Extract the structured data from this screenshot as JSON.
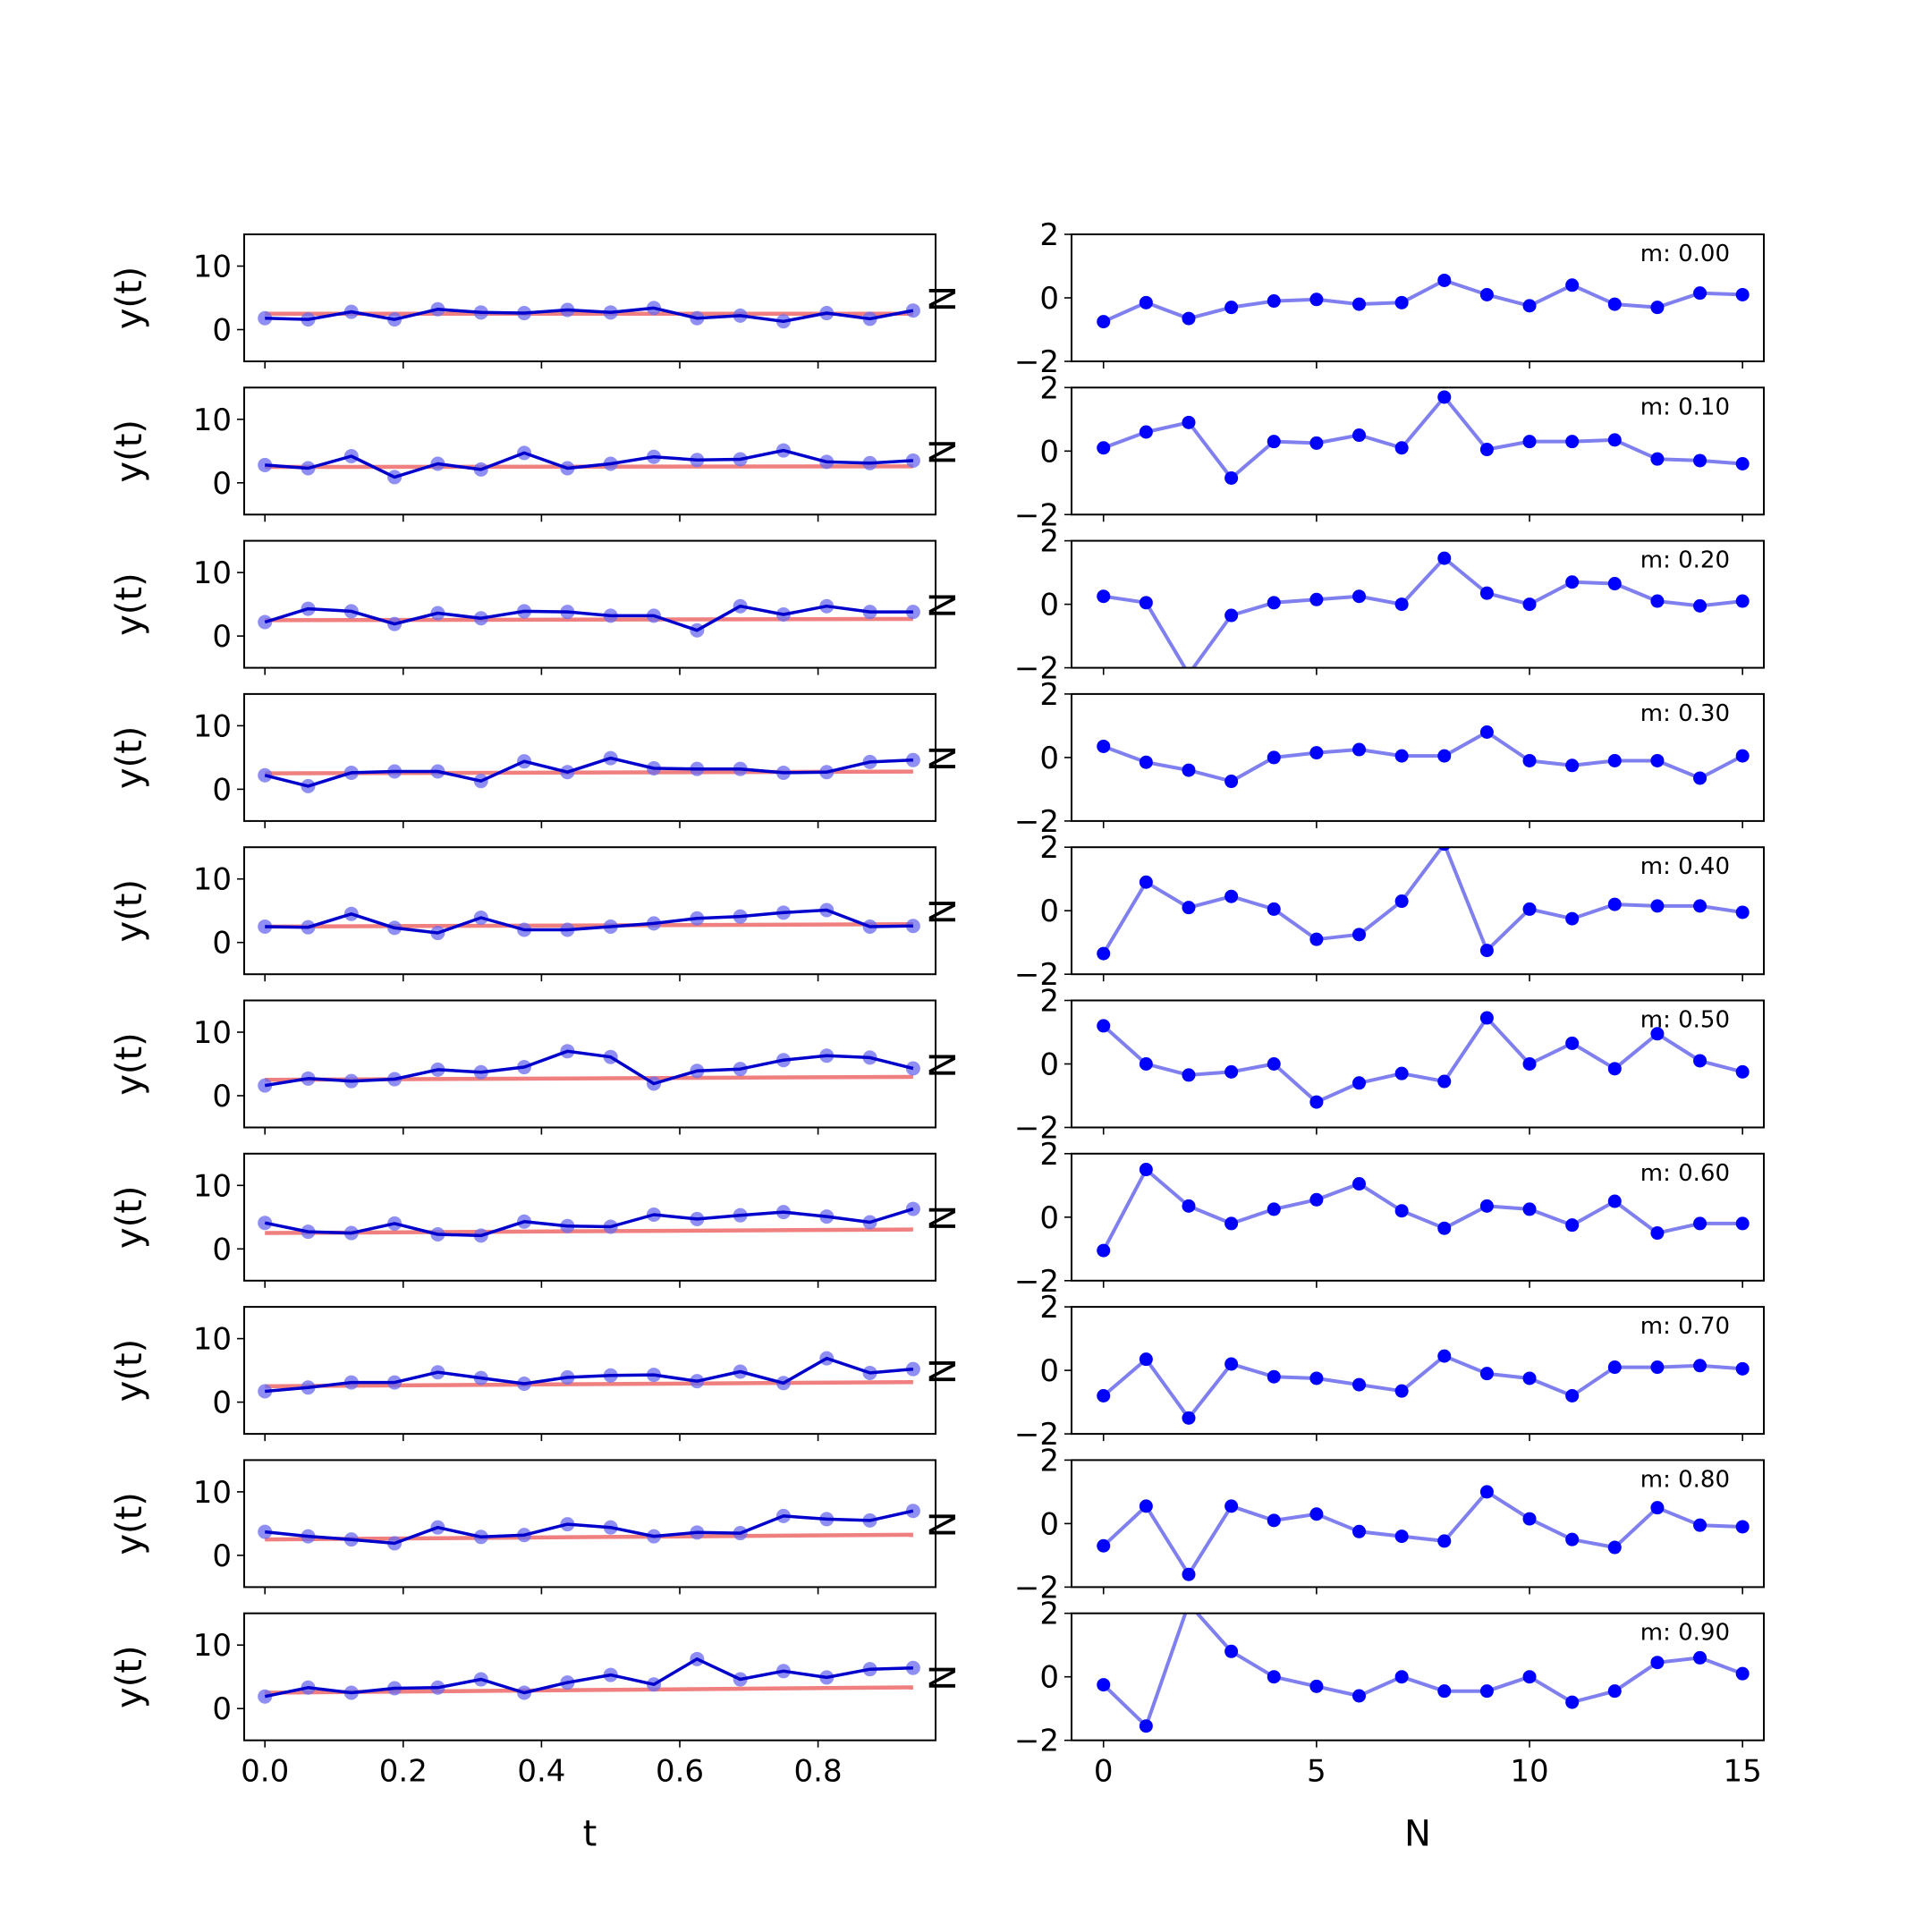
{
  "colors": {
    "fit_line": "#f08080",
    "data_line": "#0000cc",
    "data_marker": "#6a6aef",
    "residual": "#0000ff",
    "residual_line": "#7f7fef"
  },
  "chart_data": [
    {
      "type": "line",
      "xlabel": "t",
      "ylabel": "y(t)",
      "ylim": [
        -5,
        15
      ],
      "xlim": [
        -0.03,
        0.97
      ],
      "yticks": [
        "0",
        "10"
      ],
      "xticks": [
        "0.0",
        "0.2",
        "0.4",
        "0.6",
        "0.8"
      ],
      "x": [
        0.0,
        0.0625,
        0.125,
        0.1875,
        0.25,
        0.3125,
        0.375,
        0.4375,
        0.5,
        0.5625,
        0.625,
        0.6875,
        0.75,
        0.8125,
        0.875,
        0.9375
      ],
      "fit_intercept": 2.5,
      "panels": [
        {
          "m": 0.0,
          "values": [
            1.8,
            1.6,
            2.8,
            1.6,
            3.2,
            2.7,
            2.6,
            3.1,
            2.7,
            3.4,
            1.8,
            2.2,
            1.3,
            2.6,
            1.7,
            3.0
          ]
        },
        {
          "m": 0.1,
          "values": [
            2.8,
            2.3,
            4.2,
            0.9,
            3.0,
            2.1,
            4.7,
            2.3,
            3.0,
            4.1,
            3.6,
            3.7,
            5.1,
            3.3,
            3.1,
            3.5
          ]
        },
        {
          "m": 0.2,
          "values": [
            2.2,
            4.3,
            3.9,
            1.9,
            3.6,
            2.8,
            3.9,
            3.8,
            3.2,
            3.2,
            0.9,
            4.7,
            3.4,
            4.7,
            3.8,
            3.8
          ]
        },
        {
          "m": 0.3,
          "values": [
            2.2,
            0.5,
            2.6,
            2.8,
            2.8,
            1.3,
            4.4,
            2.7,
            4.9,
            3.3,
            3.2,
            3.2,
            2.6,
            2.7,
            4.3,
            4.6
          ]
        },
        {
          "m": 0.4,
          "values": [
            2.5,
            2.4,
            4.5,
            2.3,
            1.5,
            3.9,
            2.0,
            2.0,
            2.5,
            3.0,
            3.8,
            4.1,
            4.7,
            5.1,
            2.5,
            2.6
          ]
        },
        {
          "m": 0.5,
          "values": [
            1.6,
            2.7,
            2.3,
            2.6,
            4.1,
            3.7,
            4.5,
            7.0,
            6.1,
            1.9,
            3.9,
            4.2,
            5.6,
            6.3,
            6.0,
            4.3
          ]
        },
        {
          "m": 0.6,
          "values": [
            4.1,
            2.7,
            2.5,
            4.0,
            2.3,
            2.1,
            4.3,
            3.6,
            3.5,
            5.4,
            4.7,
            5.3,
            5.8,
            5.1,
            4.2,
            6.3
          ]
        },
        {
          "m": 0.7,
          "values": [
            1.7,
            2.3,
            3.1,
            3.1,
            4.7,
            3.8,
            2.9,
            3.9,
            4.2,
            4.3,
            3.3,
            4.8,
            3.0,
            6.9,
            4.6,
            5.2
          ]
        },
        {
          "m": 0.8,
          "values": [
            3.7,
            3.0,
            2.5,
            1.9,
            4.4,
            2.9,
            3.2,
            4.9,
            4.4,
            3.0,
            3.6,
            3.5,
            6.2,
            5.7,
            5.5,
            7.0
          ]
        },
        {
          "m": 0.9,
          "values": [
            1.9,
            3.3,
            2.5,
            3.2,
            3.3,
            4.6,
            2.5,
            4.1,
            5.3,
            3.8,
            7.8,
            4.6,
            5.9,
            4.9,
            6.2,
            6.4
          ]
        }
      ]
    },
    {
      "type": "line",
      "xlabel": "N",
      "ylabel": "",
      "ylim": [
        -2,
        2
      ],
      "xlim": [
        -0.75,
        15.5
      ],
      "yticks": [
        "−2",
        "0",
        "2"
      ],
      "xticks": [
        "0",
        "5",
        "10",
        "15"
      ],
      "x": [
        0,
        1,
        2,
        3,
        4,
        5,
        6,
        7,
        8,
        9,
        10,
        11,
        12,
        13,
        14,
        15
      ],
      "panels": [
        {
          "label": "m: 0.00",
          "values": [
            -0.75,
            -0.15,
            -0.65,
            -0.3,
            -0.1,
            -0.05,
            -0.2,
            -0.15,
            0.55,
            0.1,
            -0.25,
            0.4,
            -0.2,
            -0.3,
            0.15,
            0.1
          ]
        },
        {
          "label": "m: 0.10",
          "values": [
            0.1,
            0.6,
            0.9,
            -0.85,
            0.3,
            0.25,
            0.5,
            0.1,
            1.7,
            0.05,
            0.3,
            0.3,
            0.35,
            -0.25,
            -0.3,
            -0.4
          ]
        },
        {
          "label": "m: 0.20",
          "values": [
            0.25,
            0.05,
            -2.2,
            -0.35,
            0.05,
            0.15,
            0.25,
            0.0,
            1.45,
            0.35,
            0.0,
            0.7,
            0.65,
            0.1,
            -0.05,
            0.1
          ]
        },
        {
          "label": "m: 0.30",
          "values": [
            0.35,
            -0.15,
            -0.4,
            -0.75,
            0.0,
            0.15,
            0.25,
            0.05,
            0.05,
            0.8,
            -0.1,
            -0.25,
            -0.1,
            -0.1,
            -0.65,
            0.05
          ]
        },
        {
          "label": "m: 0.40",
          "values": [
            -1.35,
            0.9,
            0.1,
            0.45,
            0.05,
            -0.9,
            -0.75,
            0.3,
            2.1,
            -1.25,
            0.05,
            -0.25,
            0.2,
            0.15,
            0.15,
            -0.05
          ]
        },
        {
          "label": "m: 0.50",
          "values": [
            1.2,
            0.0,
            -0.35,
            -0.25,
            0.0,
            -1.2,
            -0.6,
            -0.3,
            -0.55,
            1.45,
            0.0,
            0.65,
            -0.15,
            0.95,
            0.1,
            -0.25
          ]
        },
        {
          "label": "m: 0.60",
          "values": [
            -1.05,
            1.5,
            0.35,
            -0.2,
            0.25,
            0.55,
            1.05,
            0.2,
            -0.35,
            0.35,
            0.25,
            -0.25,
            0.5,
            -0.5,
            -0.2,
            -0.2
          ]
        },
        {
          "label": "m: 0.70",
          "values": [
            -0.8,
            0.35,
            -1.5,
            0.2,
            -0.2,
            -0.25,
            -0.45,
            -0.65,
            0.45,
            -0.1,
            -0.25,
            -0.8,
            0.1,
            0.1,
            0.15,
            0.05
          ]
        },
        {
          "label": "m: 0.80",
          "values": [
            -0.7,
            0.55,
            -1.6,
            0.55,
            0.1,
            0.3,
            -0.25,
            -0.4,
            -0.55,
            1.0,
            0.15,
            -0.5,
            -0.75,
            0.5,
            -0.05,
            -0.1
          ]
        },
        {
          "label": "m: 0.90",
          "values": [
            -0.25,
            -1.55,
            2.3,
            0.8,
            0.0,
            -0.3,
            -0.6,
            0.0,
            -0.45,
            -0.45,
            0.0,
            -0.8,
            -0.45,
            0.45,
            0.6,
            0.1
          ]
        }
      ]
    }
  ]
}
